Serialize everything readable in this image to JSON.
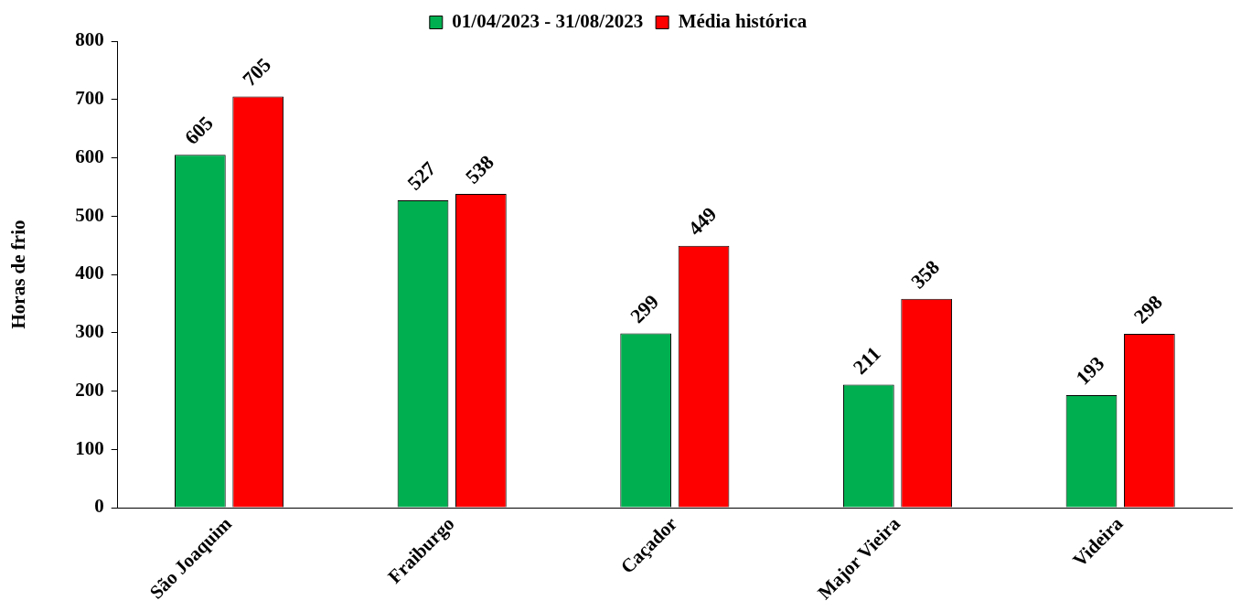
{
  "chart_data": {
    "type": "bar",
    "ylabel": "Horas de frio",
    "categories": [
      "São Joaquim",
      "Fraiburgo",
      "Caçador",
      "Major Vieira",
      "Videira"
    ],
    "series": [
      {
        "name": "01/04/2023 - 31/08/2023",
        "color": "#00b050",
        "values": [
          605,
          527,
          299,
          211,
          193
        ]
      },
      {
        "name": "Média histórica",
        "color": "#ff0000",
        "values": [
          705,
          538,
          449,
          358,
          298
        ]
      }
    ],
    "ylim": [
      0,
      800
    ],
    "yticks": [
      0,
      100,
      200,
      300,
      400,
      500,
      600,
      700,
      800
    ],
    "grid": false,
    "legend": "top",
    "data_labels": true
  }
}
